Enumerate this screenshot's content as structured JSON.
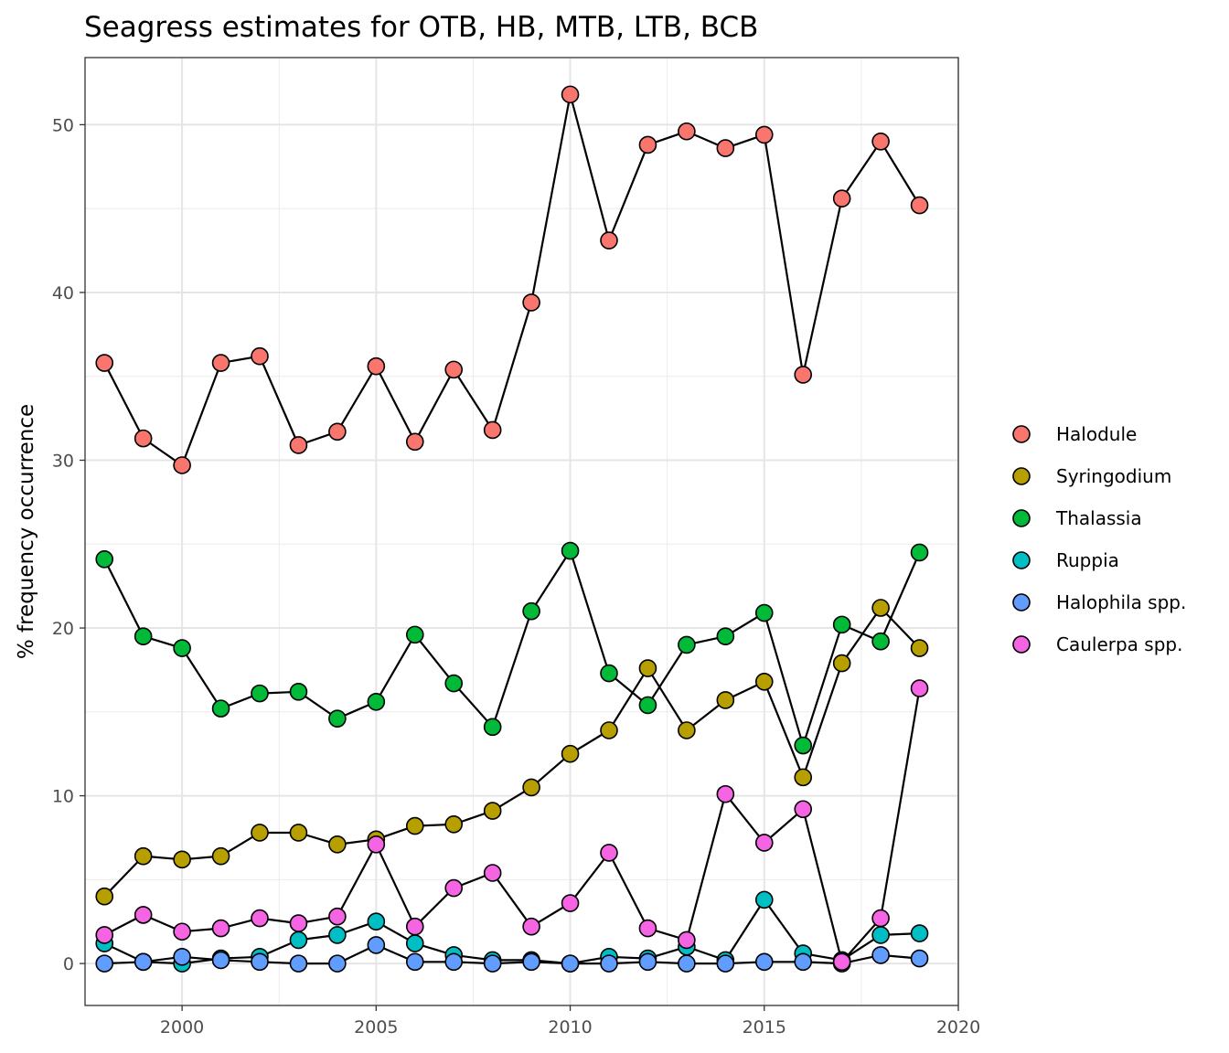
{
  "chart_data": {
    "type": "line",
    "title": "Seagress estimates for OTB, HB, MTB, LTB, BCB",
    "xlabel": "",
    "ylabel": "% frequency occurrence",
    "xlim": [
      1997.5,
      2020
    ],
    "ylim": [
      -2.5,
      54
    ],
    "xticks": [
      2000,
      2005,
      2010,
      2015,
      2020
    ],
    "yticks": [
      0,
      10,
      20,
      30,
      40,
      50
    ],
    "grid": true,
    "legend_position": "right",
    "x": [
      1998,
      1999,
      2000,
      2001,
      2002,
      2003,
      2004,
      2005,
      2006,
      2007,
      2008,
      2009,
      2010,
      2011,
      2012,
      2013,
      2014,
      2015,
      2016,
      2017,
      2018,
      2019
    ],
    "series": [
      {
        "name": "Halodule",
        "color": "#F8766D",
        "values": [
          35.8,
          31.3,
          29.7,
          35.8,
          36.2,
          30.9,
          31.7,
          35.6,
          31.1,
          35.4,
          31.8,
          39.4,
          51.8,
          43.1,
          48.8,
          49.6,
          48.6,
          49.4,
          35.1,
          45.6,
          49.0,
          45.2
        ]
      },
      {
        "name": "Syringodium",
        "color": "#B79F00",
        "values": [
          4.0,
          6.4,
          6.2,
          6.4,
          7.8,
          7.8,
          7.1,
          7.4,
          8.2,
          8.3,
          9.1,
          10.5,
          12.5,
          13.9,
          17.6,
          13.9,
          15.7,
          16.8,
          11.1,
          17.9,
          21.2,
          18.8
        ]
      },
      {
        "name": "Thalassia",
        "color": "#00BA38",
        "values": [
          24.1,
          19.5,
          18.8,
          15.2,
          16.1,
          16.2,
          14.6,
          15.6,
          19.6,
          16.7,
          14.1,
          21.0,
          24.6,
          17.3,
          15.4,
          19.0,
          19.5,
          20.9,
          13.0,
          20.2,
          19.2,
          24.5
        ]
      },
      {
        "name": "Ruppia",
        "color": "#00BFC4",
        "values": [
          1.2,
          0.1,
          0.0,
          0.3,
          0.4,
          1.4,
          1.7,
          2.5,
          1.2,
          0.5,
          0.2,
          0.2,
          0.0,
          0.4,
          0.3,
          1.0,
          0.2,
          3.8,
          0.6,
          0.2,
          1.7,
          1.8
        ]
      },
      {
        "name": "Halophila spp.",
        "color": "#619CFF",
        "values": [
          0.0,
          0.1,
          0.4,
          0.2,
          0.1,
          0.0,
          0.0,
          1.1,
          0.1,
          0.1,
          0.0,
          0.1,
          0.0,
          0.0,
          0.1,
          0.0,
          0.0,
          0.1,
          0.1,
          0.0,
          0.5,
          0.3
        ]
      },
      {
        "name": "Caulerpa spp.",
        "color": "#F564E3",
        "values": [
          1.7,
          2.9,
          1.9,
          2.1,
          2.7,
          2.4,
          2.8,
          7.1,
          2.2,
          4.5,
          5.4,
          2.2,
          3.6,
          6.6,
          2.1,
          1.4,
          10.1,
          7.2,
          9.2,
          0.1,
          2.7,
          16.4
        ]
      }
    ]
  }
}
